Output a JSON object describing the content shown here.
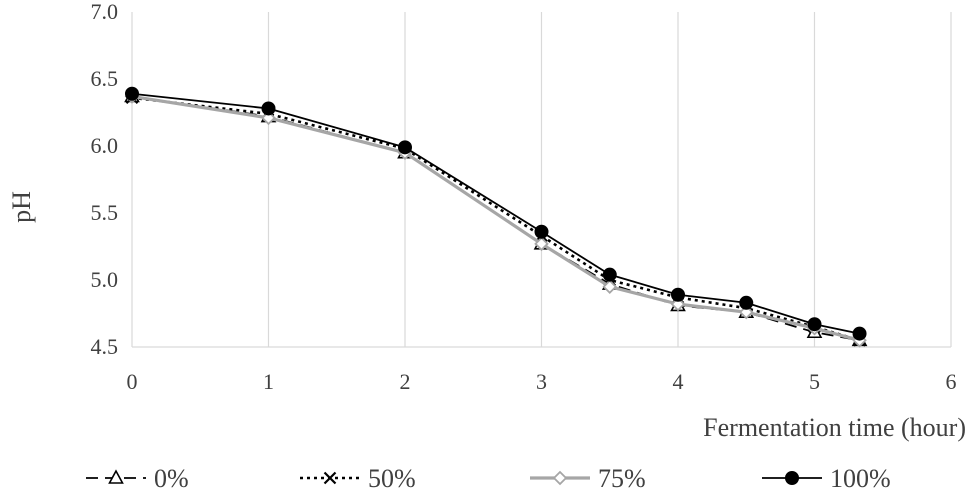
{
  "chart_data": {
    "type": "line",
    "title": "",
    "xlabel": "Fermentation time (hour)",
    "ylabel": "pH",
    "xlim": [
      0,
      6
    ],
    "ylim": [
      4.5,
      7.0
    ],
    "x_ticks": [
      0,
      1,
      2,
      3,
      4,
      5,
      6
    ],
    "y_ticks": [
      4.5,
      5.0,
      5.5,
      6.0,
      6.5,
      7.0
    ],
    "x_tick_labels": [
      "0",
      "1",
      "2",
      "3",
      "4",
      "5",
      "6"
    ],
    "y_tick_labels": [
      "4.5",
      "5.0",
      "5.5",
      "6.0",
      "6.5",
      "7.0"
    ],
    "grid": "vertical",
    "legend_position": "bottom",
    "series": [
      {
        "name": "0%",
        "marker": "triangle-open",
        "line_style": "dashed",
        "color": "#000000",
        "x": [
          0,
          1,
          2,
          3,
          3.5,
          4,
          4.5,
          5,
          5.33
        ],
        "y": [
          6.37,
          6.22,
          5.95,
          5.27,
          4.97,
          4.81,
          4.76,
          4.61,
          4.55
        ]
      },
      {
        "name": "50%",
        "marker": "x",
        "line_style": "dotted",
        "color": "#000000",
        "x": [
          0,
          1,
          2,
          3,
          3.5,
          4,
          4.5,
          5,
          5.33
        ],
        "y": [
          6.36,
          6.24,
          5.98,
          5.33,
          5.0,
          4.87,
          4.79,
          4.65,
          4.55
        ]
      },
      {
        "name": "75%",
        "marker": "diamond-open",
        "line_style": "solid",
        "color": "#a6a6a6",
        "x": [
          0,
          1,
          2,
          3,
          3.5,
          4,
          4.5,
          5,
          5.33
        ],
        "y": [
          6.37,
          6.21,
          5.95,
          5.27,
          4.95,
          4.82,
          4.76,
          4.64,
          4.55
        ]
      },
      {
        "name": "100%",
        "marker": "circle-filled",
        "line_style": "solid",
        "color": "#000000",
        "x": [
          0,
          1,
          2,
          3,
          3.5,
          4,
          4.5,
          5,
          5.33
        ],
        "y": [
          6.39,
          6.28,
          5.99,
          5.36,
          5.04,
          4.89,
          4.83,
          4.67,
          4.6
        ]
      }
    ]
  }
}
